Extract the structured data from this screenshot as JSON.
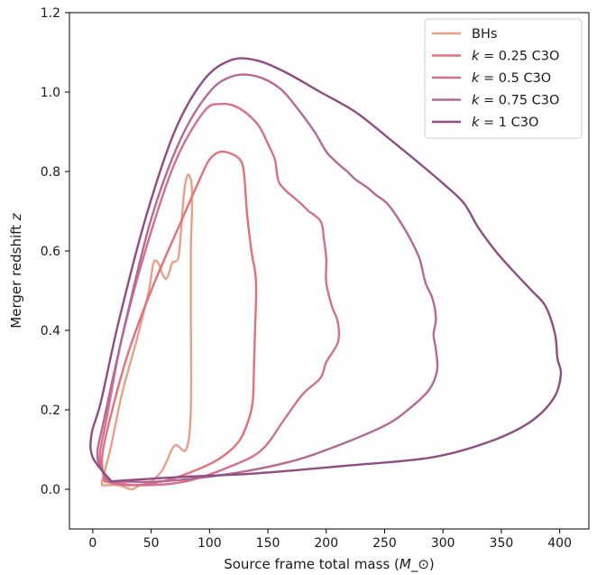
{
  "chart_data": {
    "type": "line",
    "xlabel": "Source frame total mass",
    "xlabel_unit": "M_⊙",
    "ylabel": "Merger redshift",
    "ylabel_var": "z",
    "xlim": [
      -20,
      425
    ],
    "ylim": [
      -0.1,
      1.2
    ],
    "x_ticks": [
      0,
      50,
      100,
      150,
      200,
      250,
      300,
      350,
      400
    ],
    "y_ticks": [
      0.0,
      0.2,
      0.4,
      0.6,
      0.8,
      1.0,
      1.2
    ],
    "x_tick_labels": [
      "0",
      "50",
      "100",
      "150",
      "200",
      "250",
      "300",
      "350",
      "400"
    ],
    "y_tick_labels": [
      "0.0",
      "0.2",
      "0.4",
      "0.6",
      "0.8",
      "1.0",
      "1.2"
    ],
    "grid": false,
    "legend_position": "top-right",
    "series": [
      {
        "name": "BHs",
        "legend_var": "",
        "legend_suffix": "BHs",
        "color": "#E8A08A",
        "points": [
          [
            9,
            0.01
          ],
          [
            22,
            0.01
          ],
          [
            33,
            0.0
          ],
          [
            40,
            0.01
          ],
          [
            50,
            0.02
          ],
          [
            60,
            0.05
          ],
          [
            70,
            0.11
          ],
          [
            80,
            0.1
          ],
          [
            84,
            0.2
          ],
          [
            84,
            0.45
          ],
          [
            84,
            0.6
          ],
          [
            85,
            0.7
          ],
          [
            85,
            0.75
          ],
          [
            84,
            0.78
          ],
          [
            81,
            0.79
          ],
          [
            78,
            0.74
          ],
          [
            75,
            0.63
          ],
          [
            73,
            0.58
          ],
          [
            68,
            0.57
          ],
          [
            66,
            0.55
          ],
          [
            63,
            0.53
          ],
          [
            60,
            0.54
          ],
          [
            56,
            0.57
          ],
          [
            52,
            0.57
          ],
          [
            48,
            0.5
          ],
          [
            38,
            0.38
          ],
          [
            25,
            0.24
          ],
          [
            15,
            0.1
          ],
          [
            8,
            0.02
          ],
          [
            9,
            0.01
          ]
        ]
      },
      {
        "name": "k = 0.25 C3O",
        "legend_var": "k",
        "legend_suffix": " = 0.25 C3O",
        "color": "#E3707A",
        "points": [
          [
            10,
            0.02
          ],
          [
            30,
            0.01
          ],
          [
            60,
            0.02
          ],
          [
            90,
            0.05
          ],
          [
            110,
            0.08
          ],
          [
            125,
            0.12
          ],
          [
            133,
            0.17
          ],
          [
            137,
            0.22
          ],
          [
            138,
            0.3
          ],
          [
            139,
            0.4
          ],
          [
            140,
            0.5
          ],
          [
            139,
            0.55
          ],
          [
            137,
            0.58
          ],
          [
            135,
            0.62
          ],
          [
            132,
            0.7
          ],
          [
            130,
            0.78
          ],
          [
            128,
            0.82
          ],
          [
            122,
            0.84
          ],
          [
            110,
            0.85
          ],
          [
            100,
            0.83
          ],
          [
            90,
            0.77
          ],
          [
            75,
            0.67
          ],
          [
            50,
            0.5
          ],
          [
            30,
            0.34
          ],
          [
            15,
            0.18
          ],
          [
            8,
            0.08
          ],
          [
            10,
            0.02
          ]
        ]
      },
      {
        "name": "k = 0.5 C3O",
        "legend_var": "k",
        "legend_suffix": " = 0.5 C3O",
        "color": "#D4708C",
        "points": [
          [
            12,
            0.02
          ],
          [
            40,
            0.01
          ],
          [
            80,
            0.02
          ],
          [
            120,
            0.06
          ],
          [
            145,
            0.1
          ],
          [
            165,
            0.18
          ],
          [
            180,
            0.24
          ],
          [
            195,
            0.28
          ],
          [
            200,
            0.32
          ],
          [
            210,
            0.37
          ],
          [
            210,
            0.42
          ],
          [
            205,
            0.46
          ],
          [
            200,
            0.52
          ],
          [
            200,
            0.58
          ],
          [
            198,
            0.63
          ],
          [
            196,
            0.67
          ],
          [
            190,
            0.69
          ],
          [
            185,
            0.7
          ],
          [
            178,
            0.72
          ],
          [
            170,
            0.74
          ],
          [
            166,
            0.75
          ],
          [
            160,
            0.77
          ],
          [
            158,
            0.79
          ],
          [
            156,
            0.83
          ],
          [
            150,
            0.87
          ],
          [
            141,
            0.92
          ],
          [
            125,
            0.96
          ],
          [
            110,
            0.97
          ],
          [
            95,
            0.95
          ],
          [
            70,
            0.82
          ],
          [
            45,
            0.6
          ],
          [
            25,
            0.38
          ],
          [
            12,
            0.18
          ],
          [
            6,
            0.08
          ],
          [
            12,
            0.02
          ]
        ]
      },
      {
        "name": "k = 0.75 C3O",
        "legend_var": "k",
        "legend_suffix": " = 0.75 C3O",
        "color": "#B46A95",
        "points": [
          [
            14,
            0.02
          ],
          [
            60,
            0.02
          ],
          [
            120,
            0.04
          ],
          [
            170,
            0.07
          ],
          [
            210,
            0.11
          ],
          [
            250,
            0.16
          ],
          [
            270,
            0.2
          ],
          [
            288,
            0.25
          ],
          [
            295,
            0.3
          ],
          [
            294,
            0.35
          ],
          [
            292,
            0.39
          ],
          [
            294,
            0.43
          ],
          [
            291,
            0.48
          ],
          [
            285,
            0.52
          ],
          [
            280,
            0.58
          ],
          [
            272,
            0.63
          ],
          [
            262,
            0.68
          ],
          [
            252,
            0.72
          ],
          [
            243,
            0.74
          ],
          [
            235,
            0.76
          ],
          [
            225,
            0.78
          ],
          [
            218,
            0.8
          ],
          [
            210,
            0.82
          ],
          [
            200,
            0.85
          ],
          [
            190,
            0.9
          ],
          [
            175,
            0.96
          ],
          [
            160,
            1.01
          ],
          [
            140,
            1.04
          ],
          [
            120,
            1.04
          ],
          [
            100,
            1.0
          ],
          [
            75,
            0.88
          ],
          [
            50,
            0.68
          ],
          [
            28,
            0.42
          ],
          [
            10,
            0.18
          ],
          [
            4,
            0.08
          ],
          [
            14,
            0.02
          ]
        ]
      },
      {
        "name": "k = 1 C3O",
        "legend_var": "k",
        "legend_suffix": " = 1 C3O",
        "color": "#8E4E84",
        "points": [
          [
            16,
            0.02
          ],
          [
            70,
            0.03
          ],
          [
            140,
            0.04
          ],
          [
            220,
            0.06
          ],
          [
            290,
            0.08
          ],
          [
            340,
            0.12
          ],
          [
            375,
            0.17
          ],
          [
            395,
            0.23
          ],
          [
            401,
            0.29
          ],
          [
            398,
            0.33
          ],
          [
            396,
            0.39
          ],
          [
            388,
            0.46
          ],
          [
            376,
            0.5
          ],
          [
            360,
            0.55
          ],
          [
            345,
            0.6
          ],
          [
            330,
            0.66
          ],
          [
            318,
            0.72
          ],
          [
            300,
            0.77
          ],
          [
            280,
            0.82
          ],
          [
            255,
            0.88
          ],
          [
            225,
            0.95
          ],
          [
            195,
            1.0
          ],
          [
            165,
            1.05
          ],
          [
            140,
            1.08
          ],
          [
            118,
            1.08
          ],
          [
            95,
            1.03
          ],
          [
            70,
            0.9
          ],
          [
            45,
            0.68
          ],
          [
            22,
            0.42
          ],
          [
            7,
            0.22
          ],
          [
            -1,
            0.14
          ],
          [
            0,
            0.08
          ],
          [
            16,
            0.02
          ]
        ]
      }
    ]
  }
}
